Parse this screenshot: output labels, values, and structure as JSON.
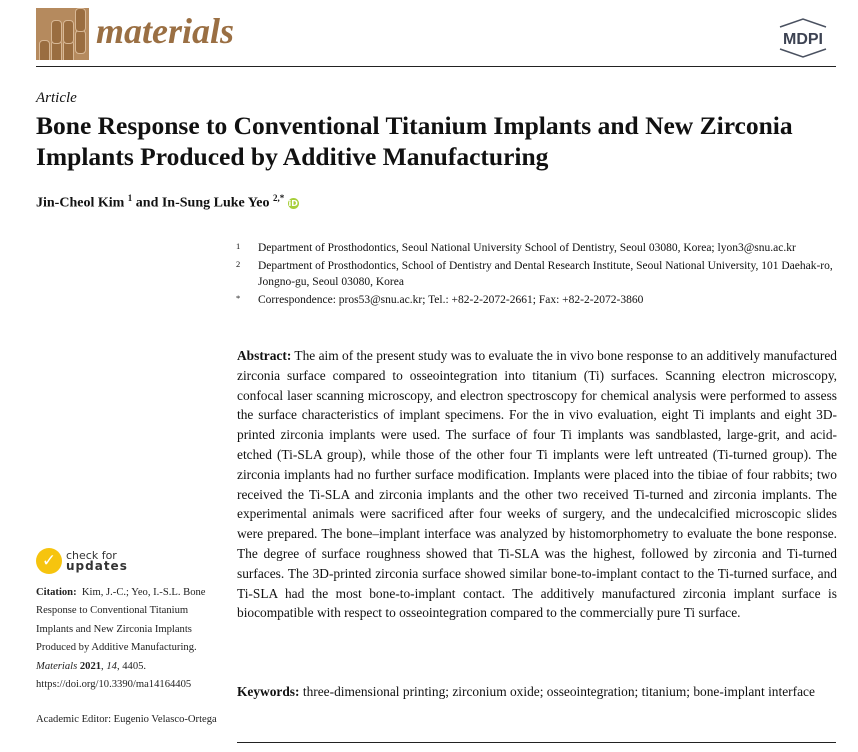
{
  "header": {
    "journal": "materials",
    "publisher": "MDPI"
  },
  "article_type": "Article",
  "title": "Bone Response to Conventional Titanium Implants and New Zirconia Implants Produced by Additive Manufacturing",
  "authors": [
    {
      "name": "Jin-Cheol Kim",
      "sup": "1"
    },
    {
      "name": "In-Sung Luke Yeo",
      "sup": "2,*"
    }
  ],
  "authors_joiner": "and",
  "affiliations": [
    {
      "n": "1",
      "text": "Department of Prosthodontics, Seoul National University School of Dentistry, Seoul 03080, Korea; lyon3@snu.ac.kr"
    },
    {
      "n": "2",
      "text": "Department of Prosthodontics, School of Dentistry and Dental Research Institute, Seoul National University, 101 Daehak-ro, Jongno-gu, Seoul 03080, Korea"
    },
    {
      "n": "*",
      "text": "Correspondence: pros53@snu.ac.kr; Tel.: +82-2-2072-2661; Fax: +82-2-2072-3860"
    }
  ],
  "abstract": {
    "label": "Abstract:",
    "text": "The aim of the present study was to evaluate the in vivo bone response to an additively manufactured zirconia surface compared to osseointegration into titanium (Ti) surfaces. Scanning electron microscopy, confocal laser scanning microscopy, and electron spectroscopy for chemical analysis were performed to assess the surface characteristics of implant specimens. For the in vivo evaluation, eight Ti implants and eight 3D-printed zirconia implants were used. The surface of four Ti implants was sandblasted, large-grit, and acid-etched (Ti-SLA group), while those of the other four Ti implants were left untreated (Ti-turned group). The zirconia implants had no further surface modification. Implants were placed into the tibiae of four rabbits; two received the Ti-SLA and zirconia implants and the other two received Ti-turned and zirconia implants. The experimental animals were sacrificed after four weeks of surgery, and the undecalcified microscopic slides were prepared. The bone–implant interface was analyzed by histomorphometry to evaluate the bone response. The degree of surface roughness showed that Ti-SLA was the highest, followed by zirconia and Ti-turned surfaces. The 3D-printed zirconia surface showed similar bone-to-implant contact to the Ti-turned surface, and Ti-SLA had the most bone-to-implant contact. The additively manufactured zirconia implant surface is biocompatible with respect to osseointegration compared to the commercially pure Ti surface."
  },
  "keywords": {
    "label": "Keywords:",
    "text": "three-dimensional printing; zirconium oxide; osseointegration; titanium; bone-implant interface"
  },
  "check_updates": {
    "line1": "check for",
    "line2": "updates"
  },
  "citation": {
    "label": "Citation:",
    "text": "Kim, J.-C.; Yeo, I.-S.L. Bone Response to Conventional Titanium Implants and New Zirconia Implants Produced by Additive Manufacturing.",
    "journal": "Materials",
    "year": "2021",
    "volume": "14",
    "rest": ", 4405.  https://doi.org/10.3390/ma14164405"
  },
  "editor": "Academic Editor: Eugenio Velasco-Ortega",
  "colors": {
    "journal": "#9a6f43",
    "orcid": "#a6ce39",
    "check": "#f6c40e"
  }
}
